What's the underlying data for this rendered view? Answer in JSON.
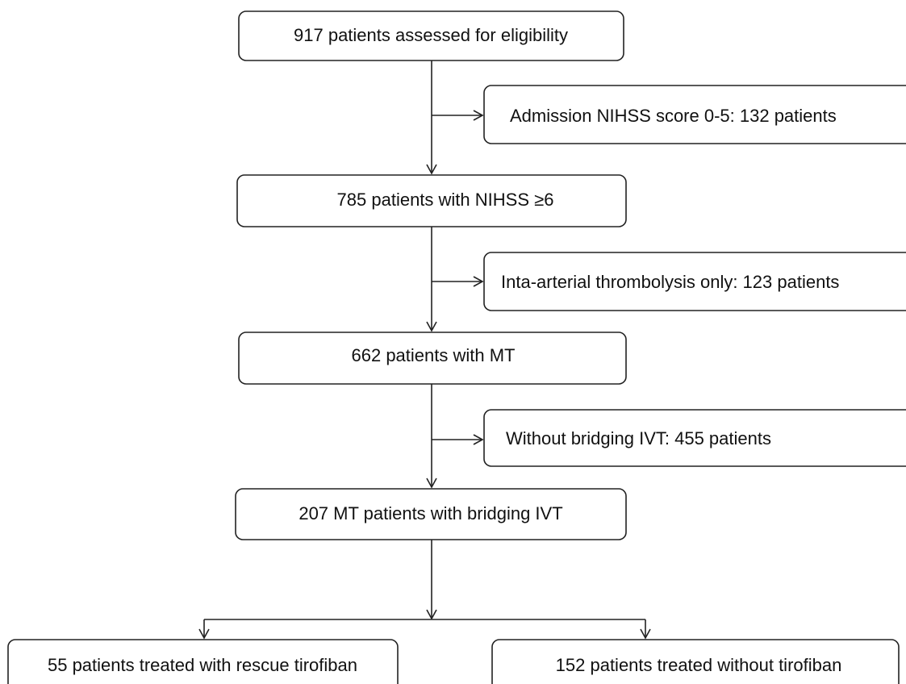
{
  "nodes": [
    {
      "label": "917 patients assessed for eligibility"
    },
    {
      "label": "Admission NIHSS score 0-5: 132 patients"
    },
    {
      "label": "785 patients with NIHSS ≥6"
    },
    {
      "label": "Inta-arterial thrombolysis only: 123 patients"
    },
    {
      "label": "662 patients with MT"
    },
    {
      "label": "Without bridging IVT: 455 patients"
    },
    {
      "label": "207 MT patients with bridging IVT"
    },
    {
      "label": "55 patients treated with rescue tirofiban"
    },
    {
      "label": "152 patients treated without tirofiban"
    }
  ]
}
